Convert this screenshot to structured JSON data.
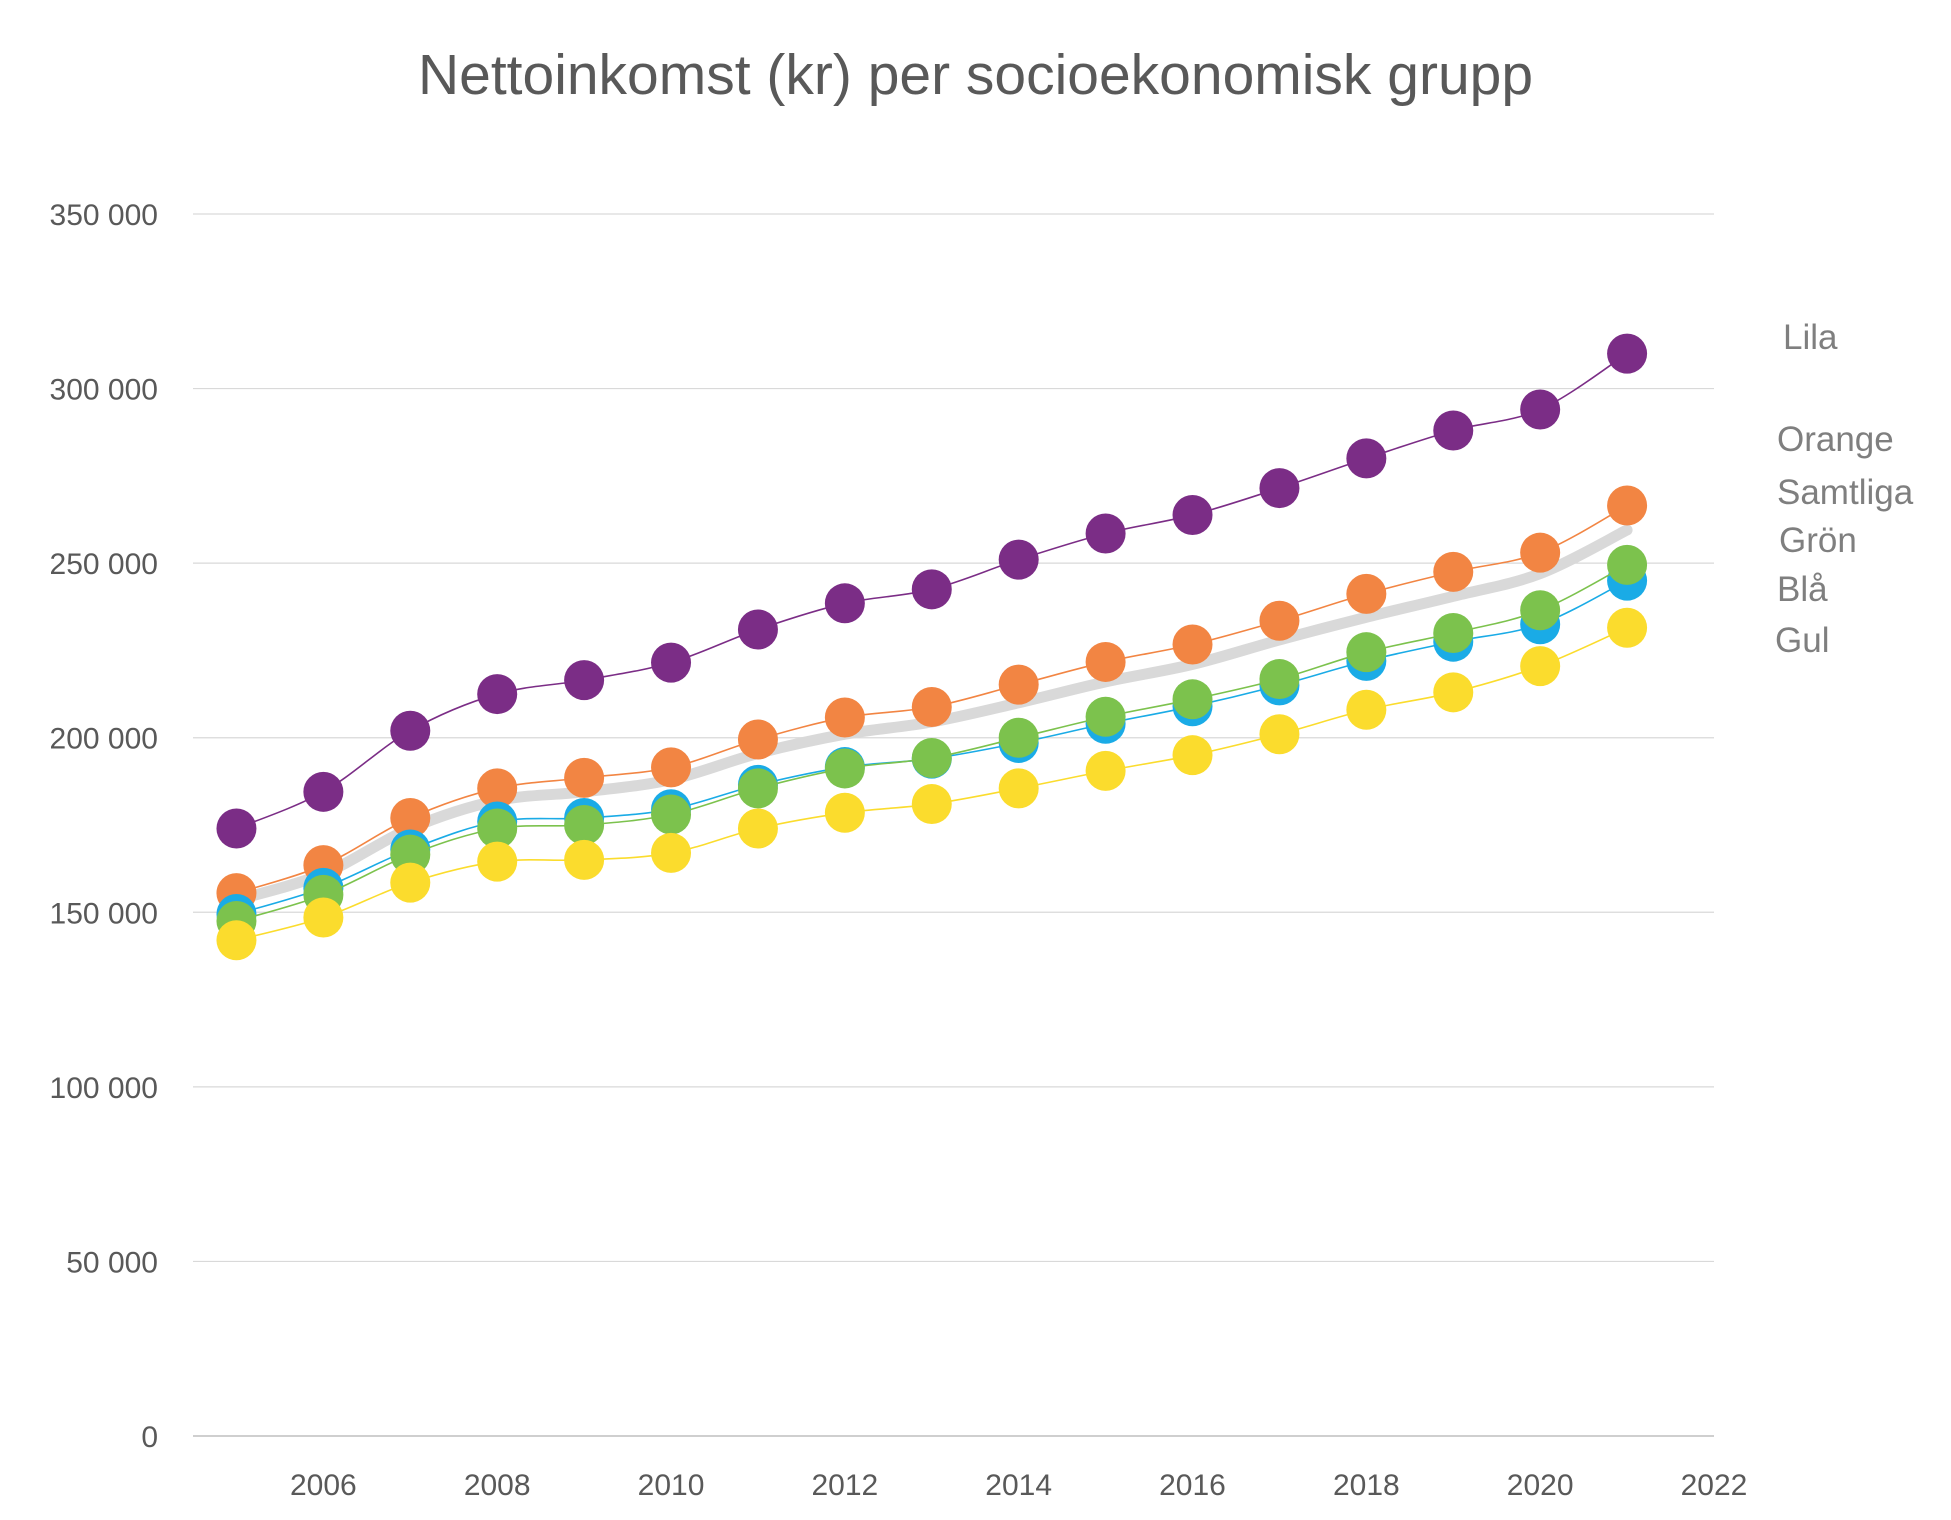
{
  "chart_data": {
    "type": "line",
    "title": "Nettoinkomst (kr) per socioekonomisk grupp",
    "xlabel": "",
    "ylabel": "",
    "xlim": [
      2004.5,
      2022
    ],
    "ylim": [
      0,
      350000
    ],
    "x_ticks": [
      2006,
      2008,
      2010,
      2012,
      2014,
      2016,
      2018,
      2020,
      2022
    ],
    "y_ticks": [
      0,
      50000,
      100000,
      150000,
      200000,
      250000,
      300000,
      350000
    ],
    "y_tick_labels": [
      "0",
      "50 000",
      "100 000",
      "150 000",
      "200 000",
      "250 000",
      "300 000",
      "350 000"
    ],
    "grid": "horizontal",
    "legend_position": "right",
    "x": [
      2005,
      2006,
      2007,
      2008,
      2009,
      2010,
      2011,
      2012,
      2013,
      2014,
      2015,
      2016,
      2017,
      2018,
      2019,
      2020,
      2021
    ],
    "series": [
      {
        "name": "Lila",
        "color": "#7b2d86",
        "style": "markers",
        "values": [
          174000,
          184500,
          202000,
          212500,
          216500,
          221500,
          231000,
          238500,
          242500,
          251000,
          258500,
          263800,
          271500,
          280000,
          288000,
          294000,
          310000
        ]
      },
      {
        "name": "Orange",
        "color": "#f28543",
        "style": "markers",
        "values": [
          155500,
          163500,
          177000,
          185500,
          188500,
          191500,
          199500,
          205800,
          208800,
          215200,
          221700,
          226700,
          233500,
          241200,
          247500,
          253000,
          266500
        ]
      },
      {
        "name": "Samtliga",
        "color": "#d9d9d9",
        "style": "thick-line",
        "values": [
          153500,
          161000,
          174000,
          182000,
          184500,
          188000,
          195500,
          201000,
          204500,
          210000,
          216000,
          221000,
          228000,
          234500,
          240500,
          247000,
          259500
        ]
      },
      {
        "name": "Grön",
        "color": "#7cc24d",
        "style": "markers",
        "values": [
          147500,
          155000,
          166500,
          174000,
          175000,
          178000,
          185500,
          191200,
          194200,
          200000,
          206000,
          211000,
          216800,
          224500,
          230000,
          236500,
          249500
        ]
      },
      {
        "name": "Blå",
        "color": "#1aabe6",
        "style": "markers",
        "values": [
          149500,
          157000,
          168000,
          176000,
          177000,
          179500,
          186500,
          191600,
          194000,
          198500,
          204000,
          209000,
          215000,
          222000,
          227500,
          232500,
          245000
        ]
      },
      {
        "name": "Gul",
        "color": "#fbdc2d",
        "style": "markers",
        "values": [
          142000,
          148500,
          158500,
          164500,
          165000,
          167000,
          174000,
          178500,
          181000,
          185500,
          190500,
          195000,
          201000,
          208000,
          213000,
          220500,
          231500
        ]
      }
    ]
  }
}
